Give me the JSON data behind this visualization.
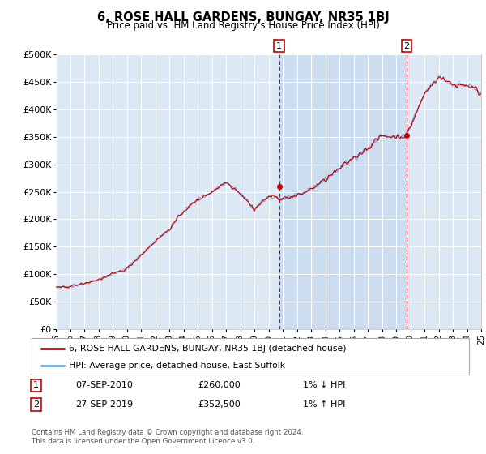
{
  "title": "6, ROSE HALL GARDENS, BUNGAY, NR35 1BJ",
  "subtitle": "Price paid vs. HM Land Registry's House Price Index (HPI)",
  "ylim": [
    0,
    500000
  ],
  "yticks": [
    0,
    50000,
    100000,
    150000,
    200000,
    250000,
    300000,
    350000,
    400000,
    450000,
    500000
  ],
  "plot_bg": "#dce9f5",
  "highlight_bg": "#ccddf0",
  "legend_label_red": "6, ROSE HALL GARDENS, BUNGAY, NR35 1BJ (detached house)",
  "legend_label_blue": "HPI: Average price, detached house, East Suffolk",
  "annotation1_date": "07-SEP-2010",
  "annotation1_price": "£260,000",
  "annotation1_hpi": "1% ↓ HPI",
  "annotation2_date": "27-SEP-2019",
  "annotation2_price": "£352,500",
  "annotation2_hpi": "1% ↑ HPI",
  "footer": "Contains HM Land Registry data © Crown copyright and database right 2024.\nThis data is licensed under the Open Government Licence v3.0.",
  "red_color": "#cc0000",
  "blue_color": "#7aaadd",
  "sale1_year": 2010.75,
  "sale1_price": 260000,
  "sale2_year": 2019.75,
  "sale2_price": 352500,
  "xmin": 1995,
  "xmax": 2025,
  "xtick_years": [
    1995,
    1996,
    1997,
    1998,
    1999,
    2000,
    2001,
    2002,
    2003,
    2004,
    2005,
    2006,
    2007,
    2008,
    2009,
    2010,
    2011,
    2012,
    2013,
    2014,
    2015,
    2016,
    2017,
    2018,
    2019,
    2020,
    2021,
    2022,
    2023,
    2024,
    2025
  ],
  "xtick_labels": [
    "95",
    "96",
    "97",
    "98",
    "99",
    "00",
    "01",
    "02",
    "03",
    "04",
    "05",
    "06",
    "07",
    "08",
    "09",
    "10",
    "11",
    "12",
    "13",
    "14",
    "15",
    "16",
    "17",
    "18",
    "19",
    "20",
    "21",
    "22",
    "23",
    "24",
    "25"
  ]
}
